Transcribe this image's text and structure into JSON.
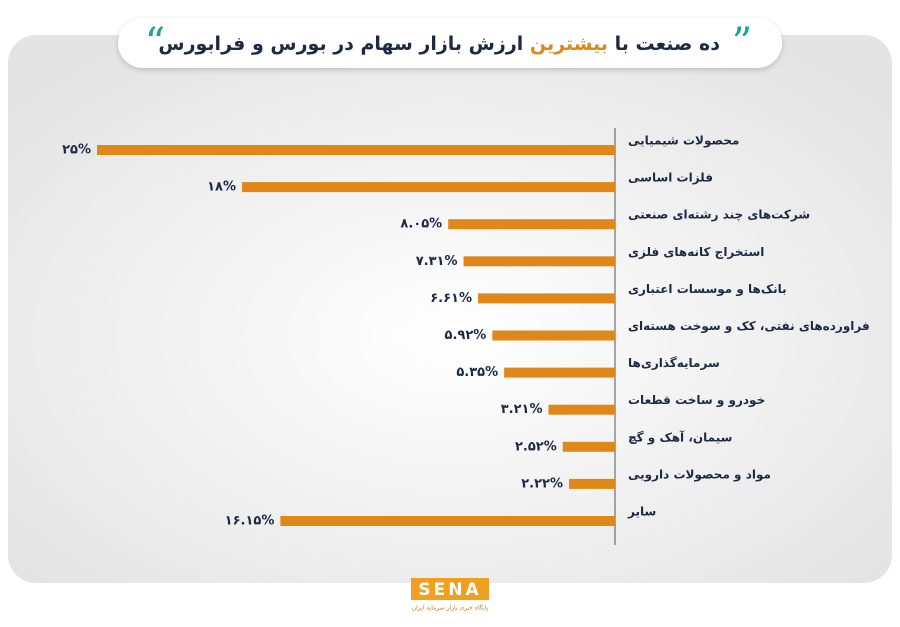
{
  "chart_data": {
    "type": "bar",
    "orientation": "horizontal",
    "title": {
      "before": "ده صنعت با",
      "highlight": "بیشترین",
      "after": "ارزش بازار سهام در بورس و فرابورس"
    },
    "categories": [
      "محصولات شیمیایی",
      "فلزات اساسی",
      "شرکت‌های چند رشته‌ای صنعتی",
      "استخراج کانه‌های فلزی",
      "بانک‌ها و موسسات اعتباری",
      "فراورده‌های نفتی، کک و سوخت هسته‌ای",
      "سرمایه‌گذاری‌ها",
      "خودرو و ساخت قطعات",
      "سیمان، آهک و گچ",
      "مواد و محصولات دارویی",
      "سایر"
    ],
    "values": [
      25,
      18,
      8.05,
      7.31,
      6.61,
      5.92,
      5.35,
      3.21,
      2.52,
      2.22,
      16.15
    ],
    "value_labels": [
      "۲۵%",
      "۱۸%",
      "۸.۰۵%",
      "۷.۳۱%",
      "۶.۶۱%",
      "۵.۹۲%",
      "۵.۳۵%",
      "۳.۲۱%",
      "۲.۵۲%",
      "۲.۲۲%",
      "۱۶.۱۵%"
    ],
    "color": "#e0871a",
    "xlim": [
      0,
      25
    ]
  },
  "logo": {
    "name": "SENA",
    "tagline": "پایگاه خبری بازار سرمایه ایران"
  }
}
